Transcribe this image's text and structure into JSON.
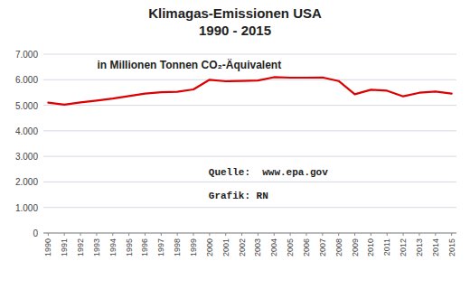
{
  "chart_data": {
    "type": "line",
    "title": "Klimagas-Emissionen USA\n1990 - 2015",
    "subtitle": "in Millionen Tonnen CO₂-Äquivalent",
    "annotations": [
      "Quelle:  www.epa.gov",
      "Grafik: RN"
    ],
    "x": [
      1990,
      1991,
      1992,
      1993,
      1994,
      1995,
      1996,
      1997,
      1998,
      1999,
      2000,
      2001,
      2002,
      2003,
      2004,
      2005,
      2006,
      2007,
      2008,
      2009,
      2010,
      2011,
      2012,
      2013,
      2014,
      2015
    ],
    "values": [
      5107,
      5025,
      5110,
      5185,
      5265,
      5360,
      5455,
      5510,
      5530,
      5620,
      6000,
      5940,
      5950,
      5970,
      6100,
      6080,
      6080,
      6090,
      5950,
      5430,
      5610,
      5570,
      5350,
      5490,
      5540,
      5460
    ],
    "color": "#dd0000",
    "xlim": [
      1989.7,
      2015.3
    ],
    "xticks": [
      1990,
      1991,
      1992,
      1993,
      1994,
      1995,
      1996,
      1997,
      1998,
      1999,
      2000,
      2001,
      2002,
      2003,
      2004,
      2005,
      2006,
      2007,
      2008,
      2009,
      2010,
      2011,
      2012,
      2013,
      2014,
      2015
    ],
    "ylim": [
      0,
      7000
    ],
    "yticks": [
      0,
      {
        "value": 1000,
        "label": "1.000"
      },
      {
        "value": 2000,
        "label": "2.000"
      },
      {
        "value": 3000,
        "label": "3.000"
      },
      {
        "value": 4000,
        "label": "4.000"
      },
      {
        "value": 5000,
        "label": "5.000"
      },
      {
        "value": 6000,
        "label": "6.000"
      },
      {
        "value": 7000,
        "label": "7.000"
      }
    ],
    "grid": true
  }
}
